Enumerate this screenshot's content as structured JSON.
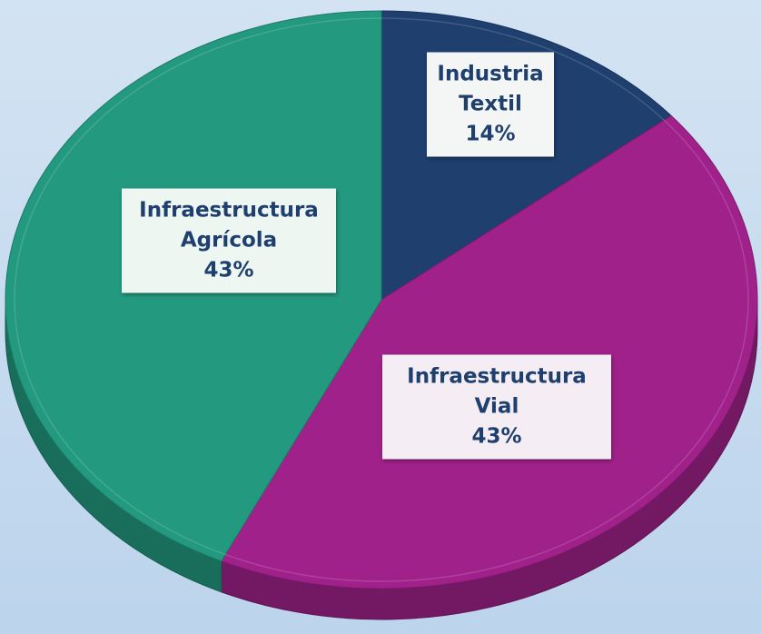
{
  "chart_data": {
    "type": "pie",
    "categories": [
      "Industria Textil",
      "Infraestructura Vial",
      "Infraestructura Agrícola"
    ],
    "values": [
      14,
      43,
      43
    ],
    "value_labels": [
      "14%",
      "43%",
      "43%"
    ],
    "colors": [
      "#1f3f6e",
      "#a0218a",
      "#23997f"
    ]
  }
}
